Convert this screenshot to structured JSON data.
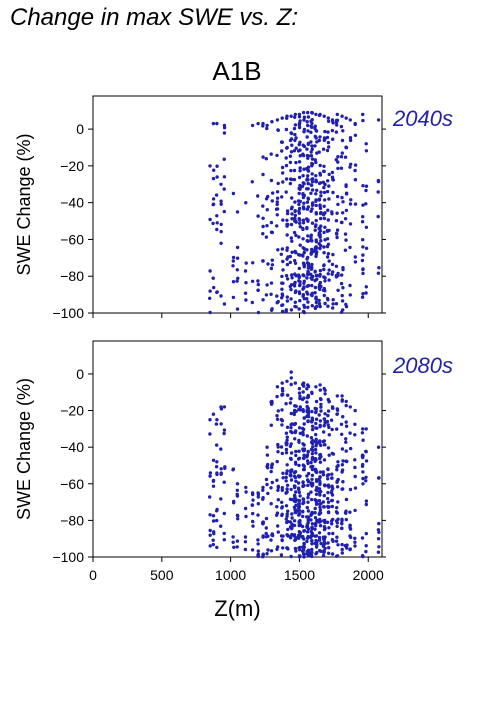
{
  "title": "Change in max SWE vs. Z:",
  "scenario": "A1B",
  "chart_data": [
    {
      "type": "scatter",
      "period": "2040s",
      "ylabel": "SWE Change (%)",
      "xlabel": "Z(m)",
      "xlim": [
        0,
        2100
      ],
      "ylim": [
        -100,
        18
      ],
      "xticks": [
        0,
        500,
        1000,
        1500,
        2000
      ],
      "yticks": [
        0,
        -20,
        -40,
        -60,
        -80,
        -100
      ],
      "point_color": "#2020b0",
      "x_columns": [
        850,
        875,
        900,
        930,
        955,
        1020,
        1050,
        1110,
        1160,
        1200,
        1235,
        1265,
        1300,
        1340,
        1375,
        1410,
        1440,
        1470,
        1500,
        1530,
        1560,
        1590,
        1620,
        1650,
        1680,
        1710,
        1740,
        1775,
        1810,
        1840,
        1870,
        1905,
        1960,
        1985,
        2075
      ],
      "y_top": [
        -20,
        3,
        3,
        -30,
        2,
        -35,
        -45,
        -40,
        2,
        3,
        3,
        2,
        4,
        5,
        6,
        7,
        7,
        8,
        8,
        9,
        9,
        9,
        8,
        8,
        7,
        6,
        5,
        8,
        7,
        6,
        5,
        3,
        8,
        -8,
        5
      ],
      "density": [
        5,
        8,
        8,
        6,
        7,
        5,
        6,
        5,
        4,
        7,
        10,
        10,
        14,
        16,
        22,
        26,
        30,
        38,
        46,
        50,
        55,
        55,
        52,
        45,
        36,
        28,
        18,
        24,
        20,
        14,
        10,
        8,
        14,
        8,
        6
      ],
      "note": "dense vertical point clouds per elevation band, spanning y_top down to -100"
    },
    {
      "type": "scatter",
      "period": "2080s",
      "ylabel": "SWE Change (%)",
      "xlabel": "Z(m)",
      "xlim": [
        0,
        2100
      ],
      "ylim": [
        -100,
        18
      ],
      "xticks": [
        0,
        500,
        1000,
        1500,
        2000
      ],
      "yticks": [
        0,
        -20,
        -40,
        -60,
        -80,
        -100
      ],
      "point_color": "#2020b0",
      "x_columns": [
        850,
        875,
        900,
        930,
        955,
        1020,
        1050,
        1110,
        1160,
        1200,
        1235,
        1265,
        1300,
        1340,
        1375,
        1410,
        1440,
        1470,
        1500,
        1530,
        1560,
        1590,
        1620,
        1650,
        1680,
        1710,
        1740,
        1775,
        1810,
        1840,
        1870,
        1905,
        1960,
        1985,
        2075
      ],
      "y_top": [
        -25,
        -22,
        -25,
        -18,
        -18,
        -52,
        -60,
        -62,
        -65,
        -65,
        -62,
        -40,
        -15,
        -7,
        -5,
        -4,
        1,
        -5,
        -8,
        -5,
        -6,
        -10,
        -7,
        -6,
        -8,
        -14,
        -18,
        -12,
        -12,
        -15,
        -18,
        -20,
        -30,
        -30,
        -40
      ],
      "density": [
        8,
        10,
        10,
        8,
        8,
        6,
        8,
        6,
        8,
        10,
        12,
        14,
        16,
        20,
        26,
        34,
        40,
        48,
        54,
        58,
        60,
        60,
        56,
        50,
        42,
        34,
        24,
        26,
        22,
        16,
        12,
        10,
        14,
        10,
        8
      ],
      "note": "dense vertical point clouds per elevation band, spanning y_top down to -100"
    }
  ]
}
